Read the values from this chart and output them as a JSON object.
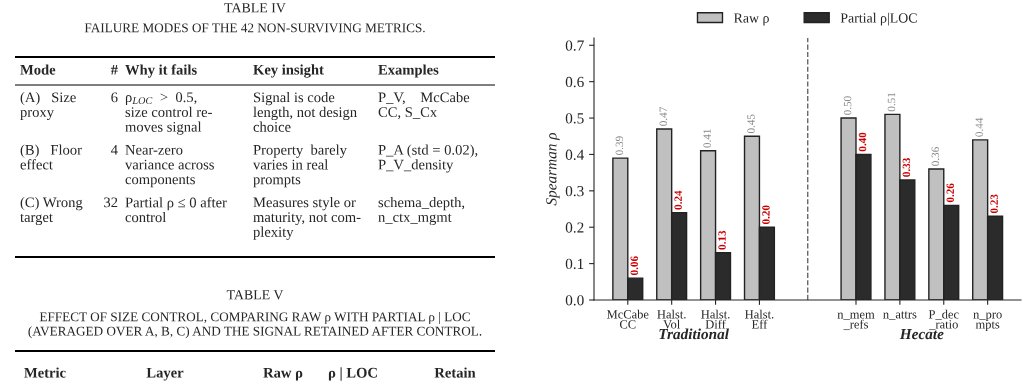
{
  "chart_data": [
    {
      "type": "other",
      "title": "TABLE IV",
      "subtitle": "FAILURE MODES OF THE 42 NON-SURVIVING METRICS.",
      "annotations": [
        "Mode",
        "#",
        "Why it fails",
        "Key insight",
        "Examples",
        "(A)   Size\nproxy",
        "6",
        "ρ$_{LOC}$  >  0.5,\nsize control re-\nmoves signal",
        "Signal is code\nlength, not design\nchoice",
        "P_V,    McCabe\nCC, S_Cx",
        "(B)   Floor\neffect",
        "4",
        "Near-zero\nvariance across\ncomponents",
        "Property  barely\nvaries in real\nprompts",
        "P_A (std = 0.02),\nP_V_density",
        "(C) Wrong\ntarget",
        "32",
        "Partial ρ ≤ 0 after\ncontrol",
        "Measures style or\nmaturity, not com-\nplexity",
        "schema_depth,\nn_ctx_mgmt"
      ]
    },
    {
      "type": "other",
      "title": "TABLE V",
      "subtitle": "EFFECT OF SIZE CONTROL, COMPARING RAW ρ WITH PARTIAL ρ | LOC\n(AVERAGED OVER A, B, C) AND THE SIGNAL RETAINED AFTER CONTROL.",
      "annotations": [
        "Metric",
        "Layer",
        "Raw ρ",
        "ρ | LOC",
        "Retain"
      ]
    },
    {
      "type": "bar",
      "ylabel": "Spearman ρ",
      "categories": [
        "McCabe\nCC",
        "Halst.\nVol",
        "Halst.\nDiff",
        "Halst.\nEff",
        "n_mem\n_refs",
        "n_attrs",
        "P_dec\n_ratio",
        "n_pro\nmpts"
      ],
      "ylim": [
        0,
        0.72
      ],
      "yticks": [
        {
          "value": 0.0,
          "label": "0.0"
        },
        {
          "value": 0.1,
          "label": "0.1"
        },
        {
          "value": 0.2,
          "label": "0.2"
        },
        {
          "value": 0.3,
          "label": "0.3"
        },
        {
          "value": 0.4,
          "label": "0.4"
        },
        {
          "value": 0.5,
          "label": "0.5"
        },
        {
          "value": 0.6,
          "label": "0.6"
        },
        {
          "value": 0.7,
          "label": "0.7"
        }
      ],
      "series": [
        {
          "name": "Raw ρ",
          "color": "#c0c0c0",
          "values": [
            0.39,
            0.47,
            0.41,
            0.45,
            0.5,
            0.51,
            0.36,
            0.44
          ],
          "value_labels": [
            "0.39",
            "0.47",
            "0.41",
            "0.45",
            "0.50",
            "0.51",
            "0.36",
            "0.44"
          ]
        },
        {
          "name": "Partial ρ|LOC",
          "color": "#2b2b2b",
          "values": [
            0.06,
            0.24,
            0.13,
            0.2,
            0.4,
            0.33,
            0.26,
            0.23
          ],
          "value_labels": [
            "0.06",
            "0.24",
            "0.13",
            "0.20",
            "0.40",
            "0.33",
            "0.26",
            "0.23"
          ]
        }
      ],
      "annotations": [
        "Traditional",
        "Hecate"
      ],
      "legend": "top",
      "grid": false
    }
  ]
}
